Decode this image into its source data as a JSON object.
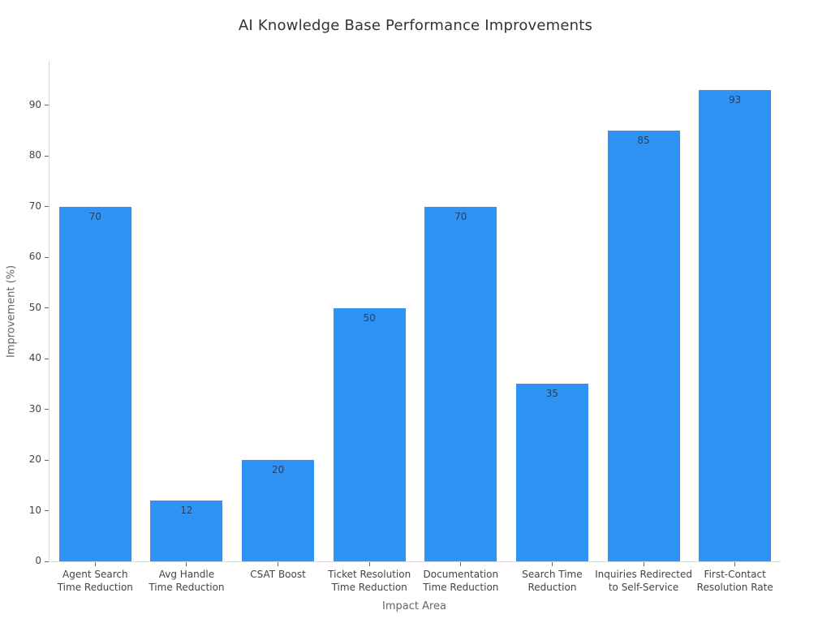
{
  "chart_data": {
    "type": "bar",
    "title": "AI Knowledge Base Performance Improvements",
    "xlabel": "Impact Area",
    "ylabel": "Improvement (%)",
    "categories": [
      "Agent Search Time Reduction",
      "Avg Handle Time Reduction",
      "CSAT Boost",
      "Ticket Resolution Time Reduction",
      "Documentation Time Reduction",
      "Search Time Reduction",
      "Inquiries Redirected to Self-Service",
      "First-Contact Resolution Rate"
    ],
    "category_lines": [
      [
        "Agent Search",
        "Time Reduction"
      ],
      [
        "Avg Handle",
        "Time Reduction"
      ],
      [
        "CSAT Boost"
      ],
      [
        "Ticket Resolution",
        "Time Reduction"
      ],
      [
        "Documentation",
        "Time Reduction"
      ],
      [
        "Search Time",
        "Reduction"
      ],
      [
        "Inquiries Redirected",
        "to Self-Service"
      ],
      [
        "First-Contact",
        "Resolution Rate"
      ]
    ],
    "values": [
      70,
      12,
      20,
      50,
      70,
      35,
      85,
      93
    ],
    "value_labels": [
      "70",
      "12",
      "20",
      "50",
      "70",
      "35",
      "85",
      "93"
    ],
    "yticks": [
      0,
      10,
      20,
      30,
      40,
      50,
      60,
      70,
      80,
      90
    ],
    "ylim": [
      0,
      98.8
    ],
    "grid": false,
    "legend": "none",
    "bar_color": "#2e93f5",
    "value_label_color": "#2a3f5f",
    "axis_line_color": "#d9d9d9",
    "tick_color": "#666666"
  }
}
